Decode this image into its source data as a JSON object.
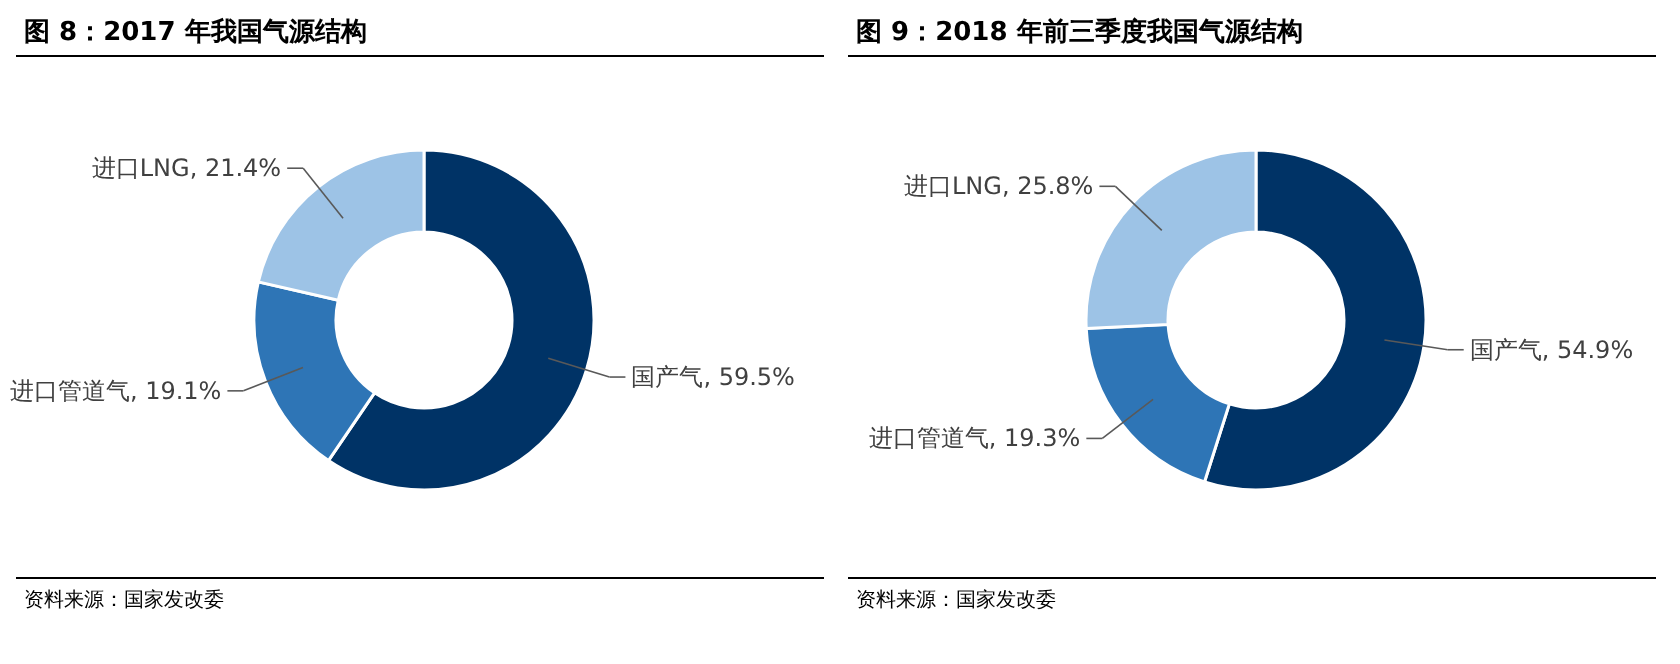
{
  "chart_data": [
    {
      "type": "donut",
      "title": "图 8：2017 年我国气源结构",
      "categories": [
        "国产气",
        "进口管道气",
        "进口LNG"
      ],
      "values": [
        59.5,
        19.1,
        21.4
      ],
      "value_labels": [
        ", 59.5%",
        ", 19.1%",
        ", 21.4%"
      ],
      "colors": [
        "#003366",
        "#2e75b6",
        "#9dc3e6"
      ],
      "annotations": [
        "资料来源：国家发改委"
      ]
    },
    {
      "type": "donut",
      "title": "图 9：2018 年前三季度我国气源结构",
      "categories": [
        "国产气",
        "进口管道气",
        "进口LNG"
      ],
      "values": [
        54.9,
        19.3,
        25.8
      ],
      "value_labels": [
        ", 54.9%",
        ", 19.3%",
        ", 25.8%"
      ],
      "colors": [
        "#003366",
        "#2e75b6",
        "#9dc3e6"
      ],
      "annotations": [
        "资料来源：国家发改委"
      ]
    }
  ]
}
